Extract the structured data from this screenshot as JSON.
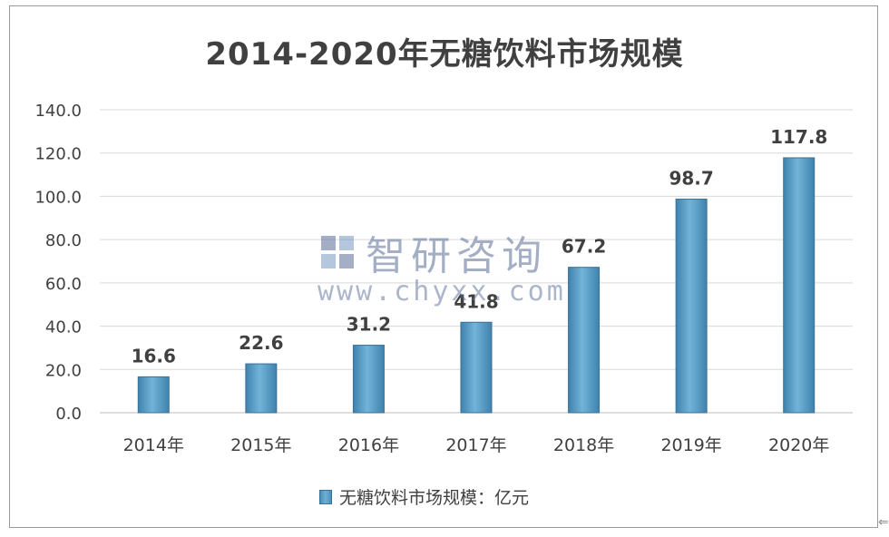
{
  "chart_data": {
    "type": "bar",
    "title": "2014-2020年无糖饮料市场规模",
    "categories": [
      "2014年",
      "2015年",
      "2016年",
      "2017年",
      "2018年",
      "2019年",
      "2020年"
    ],
    "series": [
      {
        "name": "无糖饮料市场规模：亿元",
        "values": [
          16.6,
          22.6,
          31.2,
          41.8,
          67.2,
          98.7,
          117.8
        ]
      }
    ],
    "data_labels": [
      "16.6",
      "22.6",
      "31.2",
      "41.8",
      "67.2",
      "98.7",
      "117.8"
    ],
    "y_ticks": [
      "0.0",
      "20.0",
      "40.0",
      "60.0",
      "80.0",
      "100.0",
      "120.0",
      "140.0"
    ],
    "ylim": [
      0,
      140
    ],
    "grid": true,
    "legend_position": "bottom",
    "bar_color": "#5a9ec8"
  },
  "watermark": {
    "name": "智研咨询",
    "url": "www.chyxx.com"
  }
}
